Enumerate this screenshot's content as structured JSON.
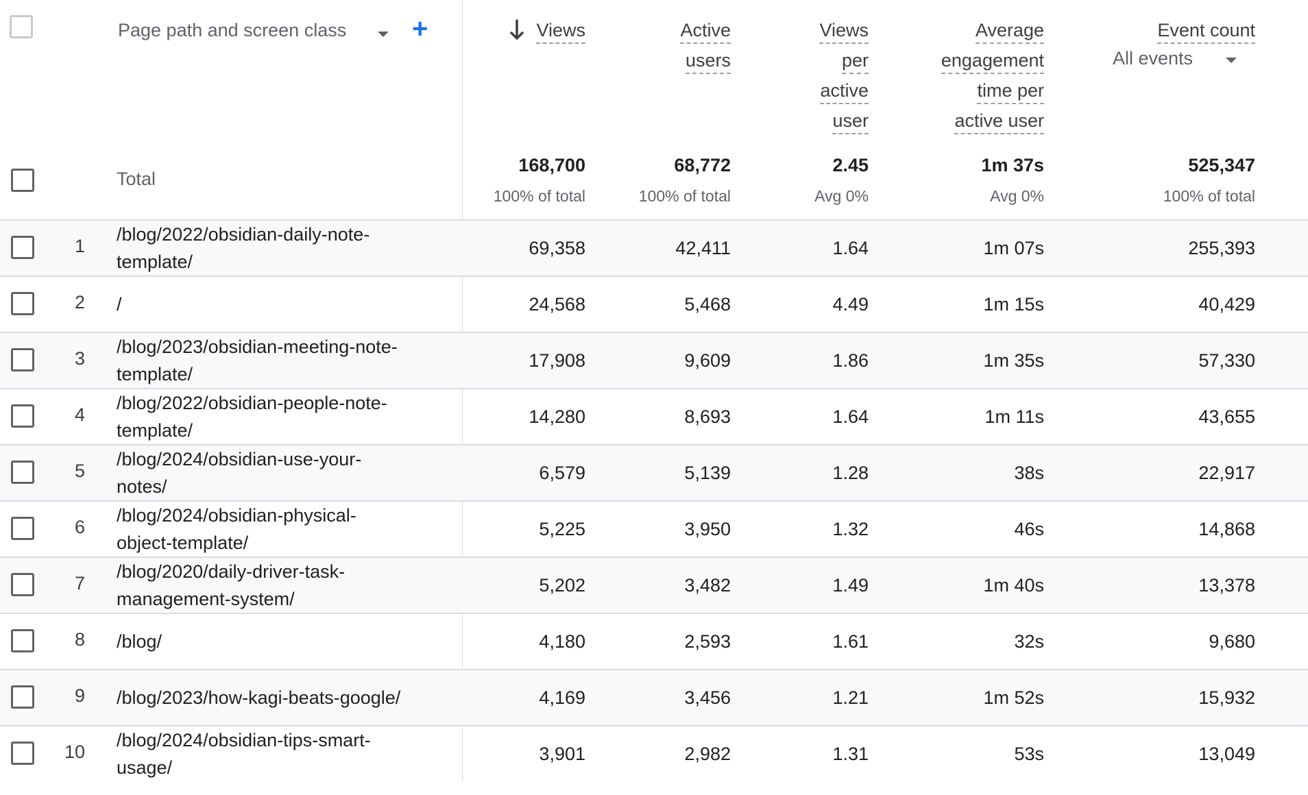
{
  "header": {
    "dimension_label": "Page path and screen class",
    "add_label": "+",
    "columns": [
      {
        "label_lines": [
          "Views"
        ]
      },
      {
        "label_lines": [
          "Active",
          "users"
        ]
      },
      {
        "label_lines": [
          "Views",
          "per",
          "active",
          "user"
        ]
      },
      {
        "label_lines": [
          "Average",
          "engagement",
          "time per",
          "active user"
        ]
      },
      {
        "label_lines": [
          "Event count"
        ],
        "selector": "All events"
      }
    ]
  },
  "total": {
    "label": "Total",
    "values": [
      "168,700",
      "68,772",
      "2.45",
      "1m 37s",
      "525,347"
    ],
    "subs": [
      "100% of total",
      "100% of total",
      "Avg 0%",
      "Avg 0%",
      "100% of total"
    ]
  },
  "rows": [
    {
      "idx": "1",
      "path": [
        "/blog/2022/obsidian-daily-note-",
        "template/"
      ],
      "values": [
        "69,358",
        "42,411",
        "1.64",
        "1m 07s",
        "255,393"
      ]
    },
    {
      "idx": "2",
      "path": [
        "/"
      ],
      "values": [
        "24,568",
        "5,468",
        "4.49",
        "1m 15s",
        "40,429"
      ]
    },
    {
      "idx": "3",
      "path": [
        "/blog/2023/obsidian-meeting-note-",
        "template/"
      ],
      "values": [
        "17,908",
        "9,609",
        "1.86",
        "1m 35s",
        "57,330"
      ]
    },
    {
      "idx": "4",
      "path": [
        "/blog/2022/obsidian-people-note-",
        "template/"
      ],
      "values": [
        "14,280",
        "8,693",
        "1.64",
        "1m 11s",
        "43,655"
      ]
    },
    {
      "idx": "5",
      "path": [
        "/blog/2024/obsidian-use-your-",
        "notes/"
      ],
      "values": [
        "6,579",
        "5,139",
        "1.28",
        "38s",
        "22,917"
      ]
    },
    {
      "idx": "6",
      "path": [
        "/blog/2024/obsidian-physical-",
        "object-template/"
      ],
      "values": [
        "5,225",
        "3,950",
        "1.32",
        "46s",
        "14,868"
      ]
    },
    {
      "idx": "7",
      "path": [
        "/blog/2020/daily-driver-task-",
        "management-system/"
      ],
      "values": [
        "5,202",
        "3,482",
        "1.49",
        "1m 40s",
        "13,378"
      ]
    },
    {
      "idx": "8",
      "path": [
        "/blog/"
      ],
      "values": [
        "4,180",
        "2,593",
        "1.61",
        "32s",
        "9,680"
      ]
    },
    {
      "idx": "9",
      "path": [
        "/blog/2023/how-kagi-beats-google/"
      ],
      "values": [
        "4,169",
        "3,456",
        "1.21",
        "1m 52s",
        "15,932"
      ]
    },
    {
      "idx": "10",
      "path": [
        "/blog/2024/obsidian-tips-smart-",
        "usage/"
      ],
      "values": [
        "3,901",
        "2,982",
        "1.31",
        "53s",
        "13,049"
      ]
    }
  ]
}
